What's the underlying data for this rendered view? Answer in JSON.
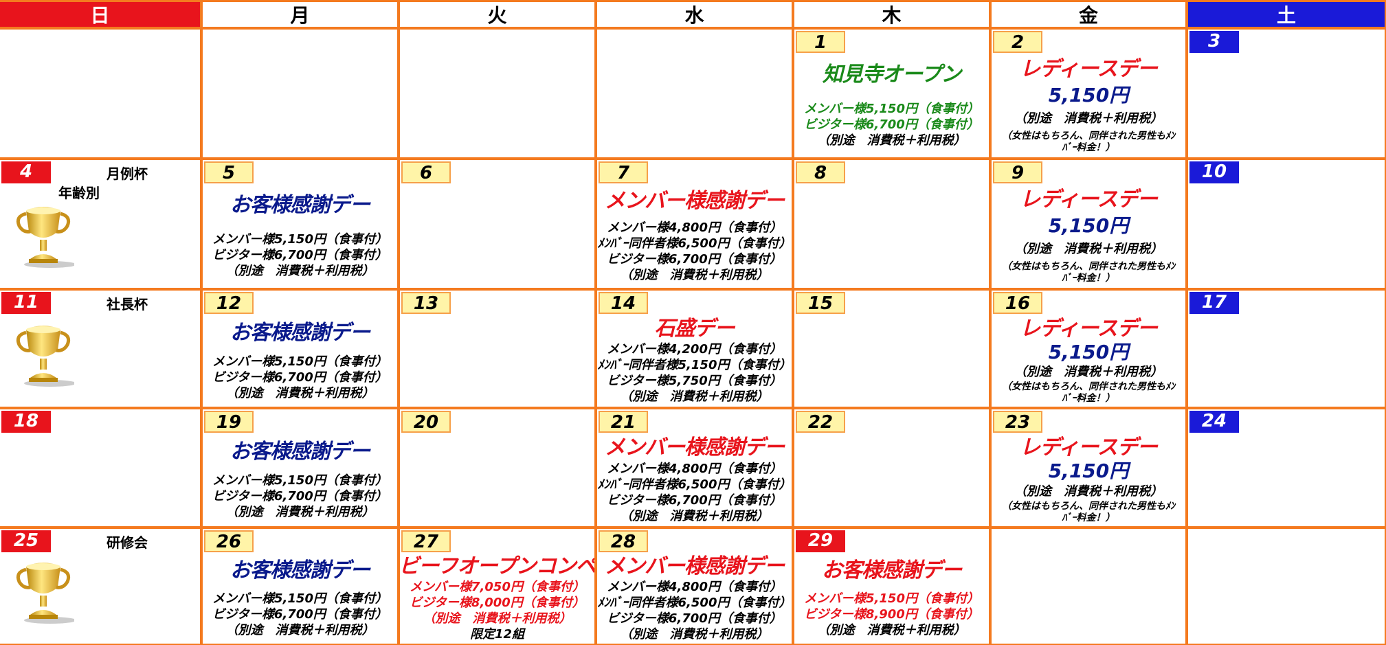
{
  "header": {
    "weekdays": [
      "日",
      "月",
      "火",
      "水",
      "木",
      "金",
      "土"
    ]
  },
  "weeks": [
    [
      null,
      null,
      null,
      null,
      {
        "day": "1",
        "title": "知見寺オープン",
        "title_color": "#1a8a1a",
        "lines": [
          {
            "text": "メンバー様5,150円（食事付）",
            "color": "#1a8a1a"
          },
          {
            "text": "ビジター様6,700円（食事付）",
            "color": "#1a8a1a"
          },
          {
            "text": "（別途　消費税＋利用税）",
            "color": "#000000"
          }
        ]
      },
      {
        "day": "2",
        "title": "レディースデー",
        "title_color": "#e8141c",
        "price": "5,150円",
        "lines": [
          {
            "text": "（別途　消費税＋利用税）",
            "color": "#000000"
          }
        ],
        "note": "（女性はもちろん、同伴された男性もﾒﾝﾊﾞｰ料金！）"
      },
      {
        "day": "3"
      }
    ],
    [
      {
        "day": "4",
        "label": "月例杯",
        "sublabel": "年齢別",
        "trophy": true
      },
      {
        "day": "5",
        "title": "お客様感謝デー",
        "title_color": "#0a1a8c",
        "lines": [
          {
            "text": "メンバー様5,150円（食事付）",
            "color": "#000000"
          },
          {
            "text": "ビジター様6,700円（食事付）",
            "color": "#000000"
          },
          {
            "text": "（別途　消費税＋利用税）",
            "color": "#000000"
          }
        ]
      },
      {
        "day": "6"
      },
      {
        "day": "7",
        "title": "メンバー様感謝デー",
        "title_color": "#e8141c",
        "lines": [
          {
            "text": "メンバー様4,800円（食事付）",
            "color": "#000000"
          },
          {
            "text": "ﾒﾝﾊﾞｰ同伴者様6,500円（食事付）",
            "color": "#000000"
          },
          {
            "text": "ビジター様6,700円（食事付）",
            "color": "#000000"
          },
          {
            "text": "（別途　消費税＋利用税）",
            "color": "#000000"
          }
        ]
      },
      {
        "day": "8"
      },
      {
        "day": "9",
        "title": "レディースデー",
        "title_color": "#e8141c",
        "price": "5,150円",
        "lines": [
          {
            "text": "（別途　消費税＋利用税）",
            "color": "#000000"
          }
        ],
        "note": "（女性はもちろん、同伴された男性もﾒﾝﾊﾞｰ料金！）"
      },
      {
        "day": "10"
      }
    ],
    [
      {
        "day": "11",
        "label": "社長杯",
        "trophy": true
      },
      {
        "day": "12",
        "title": "お客様感謝デー",
        "title_color": "#0a1a8c",
        "lines": [
          {
            "text": "メンバー様5,150円（食事付）",
            "color": "#000000"
          },
          {
            "text": "ビジター様6,700円（食事付）",
            "color": "#000000"
          },
          {
            "text": "（別途　消費税＋利用税）",
            "color": "#000000"
          }
        ]
      },
      {
        "day": "13"
      },
      {
        "day": "14",
        "title": "石盛デー",
        "title_color": "#e8141c",
        "lines": [
          {
            "text": "メンバー様4,200円（食事付）",
            "color": "#000000"
          },
          {
            "text": "ﾒﾝﾊﾞｰ同伴者様5,150円（食事付）",
            "color": "#000000"
          },
          {
            "text": "ビジター様5,750円（食事付）",
            "color": "#000000"
          },
          {
            "text": "（別途　消費税＋利用税）",
            "color": "#000000"
          }
        ]
      },
      {
        "day": "15"
      },
      {
        "day": "16",
        "title": "レディースデー",
        "title_color": "#e8141c",
        "price": "5,150円",
        "lines": [
          {
            "text": "（別途　消費税＋利用税）",
            "color": "#000000"
          }
        ],
        "note": "（女性はもちろん、同伴された男性もﾒﾝﾊﾞｰ料金！）"
      },
      {
        "day": "17"
      }
    ],
    [
      {
        "day": "18"
      },
      {
        "day": "19",
        "title": "お客様感謝デー",
        "title_color": "#0a1a8c",
        "lines": [
          {
            "text": "メンバー様5,150円（食事付）",
            "color": "#000000"
          },
          {
            "text": "ビジター様6,700円（食事付）",
            "color": "#000000"
          },
          {
            "text": "（別途　消費税＋利用税）",
            "color": "#000000"
          }
        ]
      },
      {
        "day": "20"
      },
      {
        "day": "21",
        "title": "メンバー様感謝デー",
        "title_color": "#e8141c",
        "lines": [
          {
            "text": "メンバー様4,800円（食事付）",
            "color": "#000000"
          },
          {
            "text": "ﾒﾝﾊﾞｰ同伴者様6,500円（食事付）",
            "color": "#000000"
          },
          {
            "text": "ビジター様6,700円（食事付）",
            "color": "#000000"
          },
          {
            "text": "（別途　消費税＋利用税）",
            "color": "#000000"
          }
        ]
      },
      {
        "day": "22"
      },
      {
        "day": "23",
        "title": "レディースデー",
        "title_color": "#e8141c",
        "price": "5,150円",
        "lines": [
          {
            "text": "（別途　消費税＋利用税）",
            "color": "#000000"
          }
        ],
        "note": "（女性はもちろん、同伴された男性もﾒﾝﾊﾞｰ料金！）"
      },
      {
        "day": "24"
      }
    ],
    [
      {
        "day": "25",
        "label": "研修会",
        "trophy": true
      },
      {
        "day": "26",
        "title": "お客様感謝デー",
        "title_color": "#0a1a8c",
        "lines": [
          {
            "text": "メンバー様5,150円（食事付）",
            "color": "#000000"
          },
          {
            "text": "ビジター様6,700円（食事付）",
            "color": "#000000"
          },
          {
            "text": "（別途　消費税＋利用税）",
            "color": "#000000"
          }
        ]
      },
      {
        "day": "27",
        "title": "ビーフオープンコンペ",
        "title_color": "#e8141c",
        "lines": [
          {
            "text": "メンバー様7,050円（食事付）",
            "color": "#e8141c"
          },
          {
            "text": "ビジター様8,000円（食事付）",
            "color": "#e8141c"
          },
          {
            "text": "（別途　消費税＋利用税）",
            "color": "#e8141c"
          },
          {
            "text": "限定12組",
            "color": "#000000"
          }
        ]
      },
      {
        "day": "28",
        "title": "メンバー様感謝デー",
        "title_color": "#e8141c",
        "lines": [
          {
            "text": "メンバー様4,800円（食事付）",
            "color": "#000000"
          },
          {
            "text": "ﾒﾝﾊﾞｰ同伴者様6,500円（食事付）",
            "color": "#000000"
          },
          {
            "text": "ビジター様6,700円（食事付）",
            "color": "#000000"
          },
          {
            "text": "（別途　消費税＋利用税）",
            "color": "#000000"
          }
        ]
      },
      {
        "day": "29",
        "holiday": true,
        "title": "お客様感謝デー",
        "title_color": "#e8141c",
        "lines": [
          {
            "text": "メンバー様5,150円（食事付）",
            "color": "#e8141c"
          },
          {
            "text": "ビジター様8,900円（食事付）",
            "color": "#e8141c"
          },
          {
            "text": "（別途　消費税＋利用税）",
            "color": "#000000"
          }
        ]
      },
      null,
      null
    ]
  ]
}
